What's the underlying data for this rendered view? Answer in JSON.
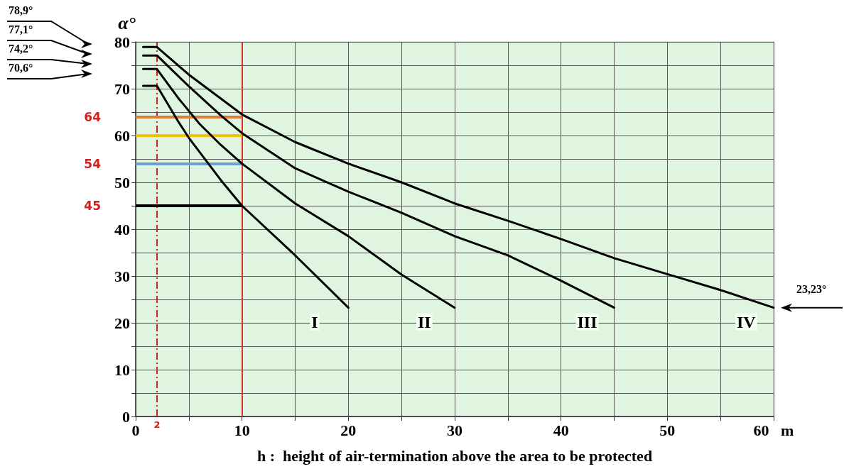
{
  "chart_data": {
    "type": "line",
    "ylabel": "α°",
    "xlabel": "h :  height of air-termination above the area to be protected",
    "xlim": [
      0,
      60
    ],
    "xticks": [
      0,
      {
        "value": 5,
        "label": null
      },
      10,
      {
        "value": 15,
        "label": null
      },
      20,
      {
        "value": 25,
        "label": null
      },
      30,
      {
        "value": 35,
        "label": null
      },
      40,
      {
        "value": 45,
        "label": null
      },
      50,
      {
        "value": 55,
        "label": null
      },
      {
        "value": 60,
        "label": "60   m"
      }
    ],
    "ylim": [
      0,
      80
    ],
    "yticks": [
      0,
      {
        "value": 5,
        "label": null
      },
      10,
      {
        "value": 15,
        "label": null
      },
      20,
      {
        "value": 25,
        "label": null
      },
      30,
      {
        "value": 35,
        "label": null
      },
      40,
      {
        "value": 45,
        "label": null
      },
      50,
      {
        "value": 55,
        "label": null
      },
      60,
      {
        "value": 65,
        "label": null
      },
      70,
      {
        "value": 75,
        "label": null
      },
      80
    ],
    "grid": true,
    "legend": false,
    "marker": "none",
    "line_style": "solid",
    "series": [
      {
        "name": "I",
        "color": "#000000",
        "x": [
          0.7,
          2,
          4,
          5,
          6,
          8,
          10,
          15,
          20
        ],
        "values": [
          70.6,
          70.6,
          63,
          59.5,
          56.5,
          50.5,
          45,
          34.4,
          23.23
        ]
      },
      {
        "name": "II",
        "color": "#000000",
        "x": [
          0.7,
          2,
          4,
          6,
          8,
          10,
          15,
          20,
          25,
          30
        ],
        "values": [
          74.2,
          74.2,
          68,
          62.5,
          58,
          54,
          45.5,
          38.5,
          30.3,
          23.23
        ]
      },
      {
        "name": "III",
        "color": "#000000",
        "x": [
          0.7,
          2,
          5,
          8,
          10,
          15,
          20,
          25,
          30,
          35,
          40,
          45
        ],
        "values": [
          77.1,
          77.1,
          70.5,
          64.3,
          60.5,
          53,
          48,
          43.5,
          38.5,
          34.4,
          29,
          23.23
        ]
      },
      {
        "name": "IV",
        "color": "#000000",
        "x": [
          0.7,
          2,
          5,
          10,
          15,
          20,
          25,
          30,
          35,
          40,
          45,
          50,
          55,
          60
        ],
        "values": [
          78.9,
          78.9,
          73,
          64.5,
          58.6,
          54,
          50,
          45.5,
          41.8,
          37.9,
          33.8,
          30.4,
          27,
          23.23
        ]
      }
    ],
    "ref_lines": [
      {
        "axis": "x",
        "value": 2,
        "label": "2",
        "color": "#cc2222",
        "line_style": "dashed"
      },
      {
        "axis": "x",
        "value": 10,
        "color": "#dd3333",
        "line_style": "solid"
      },
      {
        "axis": "y",
        "value": 64,
        "label": "64",
        "color": "#e07b39",
        "line_style": "solid"
      },
      {
        "axis": "y",
        "value": 60,
        "color": "#f2c200",
        "line_style": "solid"
      },
      {
        "axis": "y",
        "value": 54,
        "label": "54",
        "color": "#6a9fd4",
        "line_style": "solid"
      },
      {
        "axis": "y",
        "value": 45,
        "label": "45",
        "color": "#000000",
        "line_style": "solid"
      }
    ],
    "annotations": [
      "78,9°",
      "77,1°",
      "74,2°",
      "70,6°",
      {
        "text": "23,23°",
        "x": 60,
        "y": 23.23
      }
    ]
  }
}
